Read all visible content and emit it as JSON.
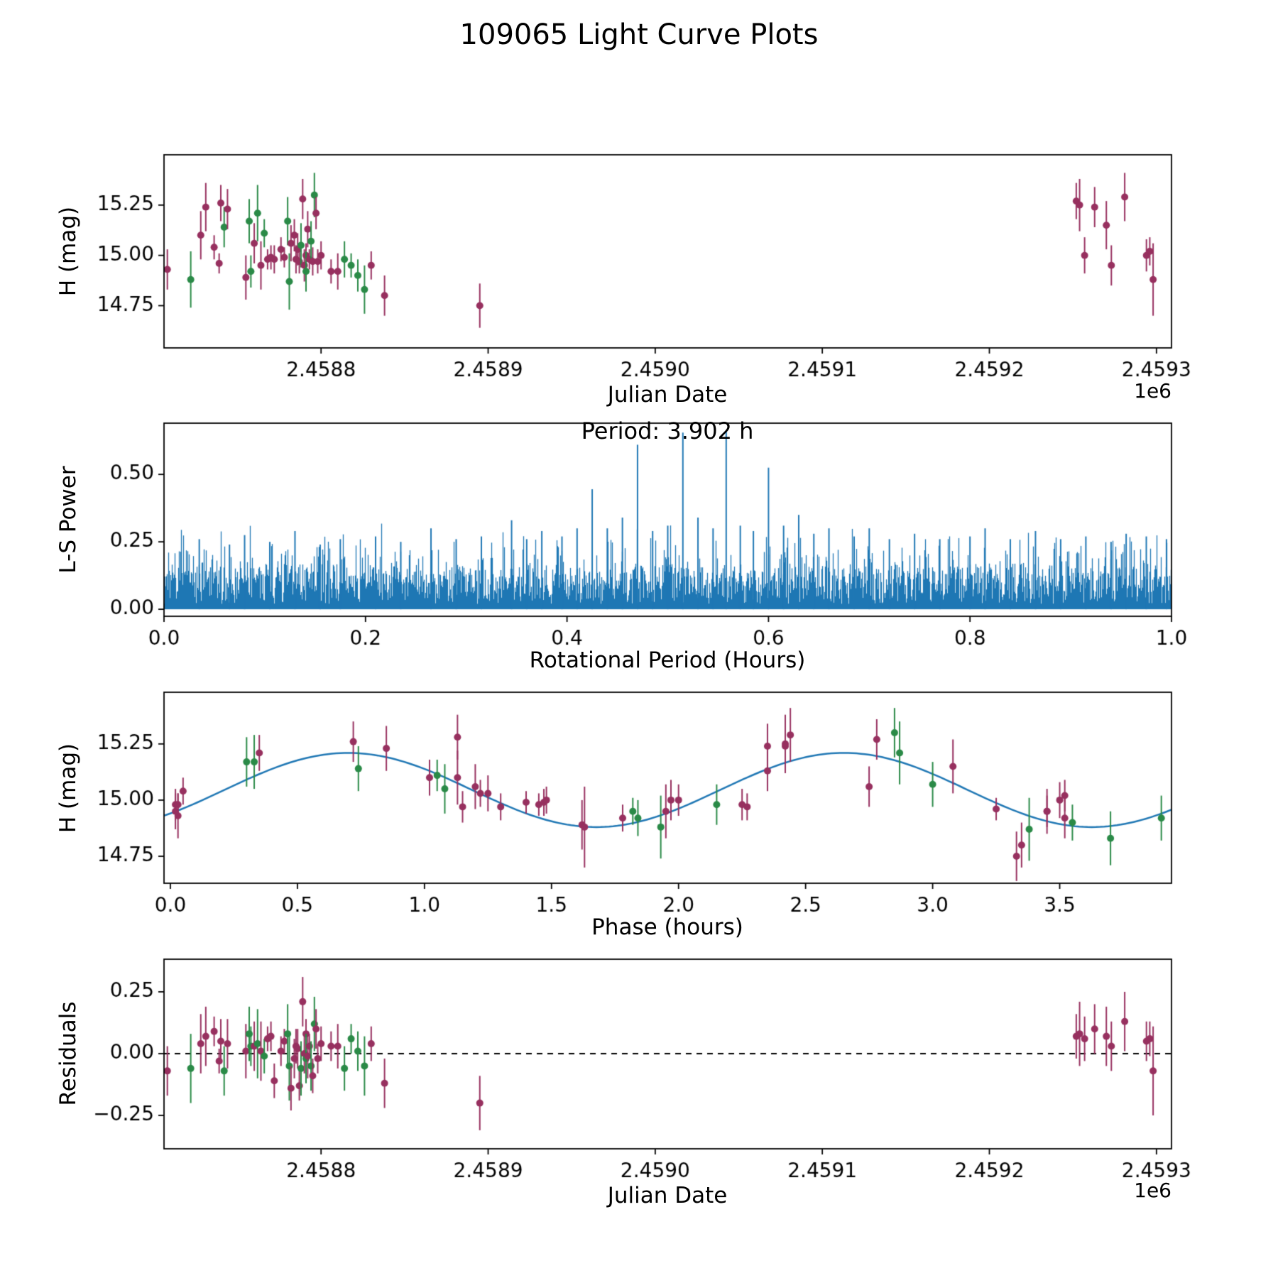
{
  "figure": {
    "title": "109065 Light Curve Plots",
    "background": "#ffffff"
  },
  "colors": {
    "series_purple": "#97305f",
    "series_green": "#2a8a47",
    "line_blue": "#1f77b4",
    "axis": "#000000",
    "background": "#ffffff"
  },
  "chart_data": [
    {
      "id": "lightcurve_jd",
      "type": "scatter",
      "xlabel": "Julian Date",
      "ylabel": "H (mag)",
      "x_offset_label": "1e6",
      "xlim": [
        2458706,
        2459309
      ],
      "ylim": [
        14.54,
        15.5
      ],
      "xticks": [
        2458800,
        2458900,
        2459000,
        2459100,
        2459200,
        2459300
      ],
      "xtick_labels": [
        "2.4588",
        "2.4589",
        "2.4590",
        "2.4591",
        "2.4592",
        "2.4593"
      ],
      "yticks": [
        14.75,
        15.0,
        15.25
      ],
      "ytick_labels": [
        "14.75",
        "15.00",
        "15.25"
      ],
      "grid": false,
      "legend": "none",
      "uses": "observations (jd vs h_mag with h_err error bars, colored by color_key)"
    },
    {
      "id": "periodogram",
      "type": "line",
      "annotation": "Period: 3.902 h",
      "xlabel": "Rotational Period (Hours)",
      "ylabel": "L-S Power",
      "xlim": [
        0.0,
        1.0
      ],
      "ylim": [
        -0.026,
        0.69
      ],
      "xticks": [
        0.0,
        0.2,
        0.4,
        0.6,
        0.8,
        1.0
      ],
      "xtick_labels": [
        "0.0",
        "0.2",
        "0.4",
        "0.6",
        "0.8",
        "1.0"
      ],
      "yticks": [
        0.0,
        0.25,
        0.5
      ],
      "ytick_labels": [
        "0.00",
        "0.25",
        "0.50"
      ],
      "grid": false,
      "legend": "none",
      "noise_model": {
        "seed": 7,
        "n_lines": 1419,
        "base": 0.02,
        "uniform_span": 0.14,
        "spike_span": 0.17,
        "spike_power": 6
      },
      "peaks": [
        [
          0.035,
          0.26
        ],
        [
          0.065,
          0.24
        ],
        [
          0.08,
          0.275
        ],
        [
          0.105,
          0.25
        ],
        [
          0.13,
          0.29
        ],
        [
          0.155,
          0.24
        ],
        [
          0.175,
          0.26
        ],
        [
          0.21,
          0.27
        ],
        [
          0.235,
          0.25
        ],
        [
          0.265,
          0.3
        ],
        [
          0.29,
          0.26
        ],
        [
          0.315,
          0.27
        ],
        [
          0.345,
          0.33
        ],
        [
          0.36,
          0.26
        ],
        [
          0.375,
          0.29
        ],
        [
          0.395,
          0.27
        ],
        [
          0.41,
          0.3
        ],
        [
          0.425,
          0.445
        ],
        [
          0.44,
          0.3
        ],
        [
          0.455,
          0.34
        ],
        [
          0.47,
          0.61
        ],
        [
          0.485,
          0.29
        ],
        [
          0.5,
          0.31
        ],
        [
          0.515,
          0.655
        ],
        [
          0.53,
          0.34
        ],
        [
          0.545,
          0.3
        ],
        [
          0.558,
          0.66
        ],
        [
          0.572,
          0.31
        ],
        [
          0.585,
          0.29
        ],
        [
          0.6,
          0.525
        ],
        [
          0.615,
          0.31
        ],
        [
          0.63,
          0.35
        ],
        [
          0.645,
          0.28
        ],
        [
          0.66,
          0.3
        ],
        [
          0.685,
          0.27
        ],
        [
          0.7,
          0.3
        ],
        [
          0.72,
          0.26
        ],
        [
          0.745,
          0.28
        ],
        [
          0.77,
          0.26
        ],
        [
          0.8,
          0.27
        ],
        [
          0.815,
          0.3
        ],
        [
          0.84,
          0.26
        ],
        [
          0.865,
          0.29
        ],
        [
          0.89,
          0.26
        ],
        [
          0.915,
          0.27
        ],
        [
          0.94,
          0.25
        ],
        [
          0.955,
          0.28
        ],
        [
          0.975,
          0.27
        ],
        [
          0.995,
          0.26
        ]
      ]
    },
    {
      "id": "phased_lightcurve",
      "type": "scatter+line",
      "xlabel": "Phase (hours)",
      "ylabel": "H (mag)",
      "xlim": [
        -0.025,
        3.94
      ],
      "ylim": [
        14.63,
        15.48
      ],
      "xticks": [
        0.0,
        0.5,
        1.0,
        1.5,
        2.0,
        2.5,
        3.0,
        3.5
      ],
      "xtick_labels": [
        "0.0",
        "0.5",
        "1.0",
        "1.5",
        "2.0",
        "2.5",
        "3.0",
        "3.5"
      ],
      "yticks": [
        14.75,
        15.0,
        15.25
      ],
      "ytick_labels": [
        "14.75",
        "15.00",
        "15.25"
      ],
      "grid": false,
      "legend": "none",
      "fit": {
        "mean": 15.045,
        "amplitude": 0.165,
        "period_hours": 1.951,
        "phase_of_max": 0.7
      },
      "uses": "observations (phase_hours vs h_mag with h_err error bars, colored by color_key)"
    },
    {
      "id": "residuals_jd",
      "type": "scatter",
      "xlabel": "Julian Date",
      "ylabel": "Residuals",
      "x_offset_label": "1e6",
      "xlim": [
        2458706,
        2459309
      ],
      "ylim": [
        -0.385,
        0.382
      ],
      "xticks": [
        2458800,
        2458900,
        2459000,
        2459100,
        2459200,
        2459300
      ],
      "xtick_labels": [
        "2.4588",
        "2.4589",
        "2.4590",
        "2.4591",
        "2.4592",
        "2.4593"
      ],
      "yticks": [
        -0.25,
        0.0,
        0.25
      ],
      "ytick_labels": [
        "−0.25",
        "0.00",
        "0.25"
      ],
      "zero_line": {
        "style": "dashed",
        "y": 0.0,
        "color": "#000000"
      },
      "grid": false,
      "legend": "none",
      "uses": "observations (jd vs residual with h_err error bars, colored by color_key)"
    }
  ],
  "observations": {
    "fields": [
      "jd",
      "phase_hours",
      "h_mag",
      "h_err",
      "color_key",
      "residual"
    ],
    "color_key_map": {
      "P": "series_purple",
      "G": "series_green"
    },
    "rows": [
      [
        2458708,
        0.03,
        14.93,
        0.1,
        "P",
        -0.07
      ],
      [
        2458722,
        1.93,
        14.88,
        0.14,
        "G",
        -0.06
      ],
      [
        2458728,
        1.13,
        15.1,
        0.12,
        "P",
        0.04
      ],
      [
        2458731,
        2.42,
        15.24,
        0.12,
        "P",
        0.07
      ],
      [
        2458736,
        0.05,
        15.04,
        0.06,
        "P",
        0.09
      ],
      [
        2458739,
        3.25,
        14.96,
        0.05,
        "P",
        -0.03
      ],
      [
        2458740,
        0.72,
        15.26,
        0.09,
        "P",
        0.05
      ],
      [
        2458742,
        0.74,
        15.14,
        0.1,
        "G",
        -0.07
      ],
      [
        2458744,
        0.85,
        15.23,
        0.1,
        "P",
        0.04
      ],
      [
        2458755,
        1.62,
        14.89,
        0.11,
        "P",
        0.01
      ],
      [
        2458757,
        0.3,
        15.17,
        0.11,
        "G",
        0.08
      ],
      [
        2458758,
        1.84,
        14.92,
        0.08,
        "G",
        0.03
      ],
      [
        2458760,
        1.2,
        15.06,
        0.1,
        "P",
        0.03
      ],
      [
        2458762,
        2.87,
        15.21,
        0.14,
        "G",
        0.04
      ],
      [
        2458764,
        1.95,
        14.95,
        0.12,
        "P",
        0.01
      ],
      [
        2458766,
        1.05,
        15.11,
        0.07,
        "G",
        -0.01
      ],
      [
        2458768,
        1.45,
        14.98,
        0.05,
        "P",
        0.06
      ],
      [
        2458770,
        1.47,
        14.99,
        0.06,
        "P",
        0.07
      ],
      [
        2458772,
        2.25,
        14.98,
        0.07,
        "P",
        -0.11
      ],
      [
        2458776,
        1.22,
        15.03,
        0.06,
        "P",
        0.01
      ],
      [
        2458778,
        1.4,
        14.99,
        0.05,
        "P",
        0.05
      ],
      [
        2458780,
        0.33,
        15.17,
        0.12,
        "G",
        0.08
      ],
      [
        2458781,
        3.38,
        14.87,
        0.14,
        "G",
        -0.05
      ],
      [
        2458782,
        2.75,
        15.06,
        0.09,
        "P",
        -0.14
      ],
      [
        2458784,
        1.02,
        15.1,
        0.08,
        "P",
        -0.02
      ],
      [
        2458785,
        0.02,
        14.98,
        0.07,
        "P",
        0.03
      ],
      [
        2458786,
        1.25,
        15.03,
        0.08,
        "P",
        0.02
      ],
      [
        2458787,
        2.27,
        14.97,
        0.06,
        "P",
        -0.13
      ],
      [
        2458788,
        1.08,
        15.05,
        0.11,
        "G",
        -0.06
      ],
      [
        2458789,
        1.13,
        15.28,
        0.1,
        "P",
        0.21
      ],
      [
        2458790,
        0.02,
        14.95,
        0.08,
        "P",
        0.0
      ],
      [
        2458791,
        1.48,
        15.0,
        0.06,
        "P",
        0.08
      ],
      [
        2458791,
        3.9,
        14.92,
        0.1,
        "G",
        -0.02
      ],
      [
        2458792,
        2.35,
        15.13,
        0.09,
        "P",
        -0.01
      ],
      [
        2458793,
        0.03,
        14.98,
        0.05,
        "P",
        0.03
      ],
      [
        2458794,
        3.0,
        15.07,
        0.1,
        "G",
        -0.05
      ],
      [
        2458795,
        1.15,
        14.97,
        0.07,
        "P",
        -0.09
      ],
      [
        2458796,
        2.85,
        15.3,
        0.11,
        "G",
        0.12
      ],
      [
        2458797,
        0.35,
        15.21,
        0.08,
        "P",
        0.1
      ],
      [
        2458798,
        1.3,
        14.97,
        0.06,
        "P",
        -0.02
      ],
      [
        2458800,
        2.0,
        15.0,
        0.07,
        "P",
        0.04
      ],
      [
        2458806,
        1.78,
        14.92,
        0.06,
        "P",
        0.03
      ],
      [
        2458810,
        3.52,
        14.92,
        0.09,
        "P",
        0.03
      ],
      [
        2458814,
        2.15,
        14.98,
        0.09,
        "G",
        -0.06
      ],
      [
        2458818,
        1.82,
        14.95,
        0.06,
        "G",
        0.06
      ],
      [
        2458822,
        3.55,
        14.9,
        0.08,
        "G",
        0.01
      ],
      [
        2458826,
        3.7,
        14.83,
        0.12,
        "G",
        -0.05
      ],
      [
        2458830,
        3.45,
        14.95,
        0.07,
        "P",
        0.04
      ],
      [
        2458838,
        3.35,
        14.8,
        0.1,
        "P",
        -0.12
      ],
      [
        2458895,
        3.33,
        14.75,
        0.11,
        "P",
        -0.2
      ],
      [
        2459252,
        2.78,
        15.27,
        0.09,
        "P",
        0.07
      ],
      [
        2459254,
        2.42,
        15.25,
        0.13,
        "P",
        0.08
      ],
      [
        2459257,
        1.97,
        15.0,
        0.09,
        "P",
        0.06
      ],
      [
        2459263,
        2.35,
        15.24,
        0.1,
        "P",
        0.1
      ],
      [
        2459270,
        3.08,
        15.15,
        0.12,
        "P",
        0.07
      ],
      [
        2459273,
        3.45,
        14.95,
        0.1,
        "P",
        0.03
      ],
      [
        2459281,
        2.44,
        15.29,
        0.12,
        "P",
        0.13
      ],
      [
        2459294,
        3.5,
        15.0,
        0.08,
        "P",
        0.05
      ],
      [
        2459296,
        3.52,
        15.02,
        0.07,
        "P",
        0.06
      ],
      [
        2459298,
        1.63,
        14.88,
        0.18,
        "P",
        -0.07
      ]
    ]
  }
}
